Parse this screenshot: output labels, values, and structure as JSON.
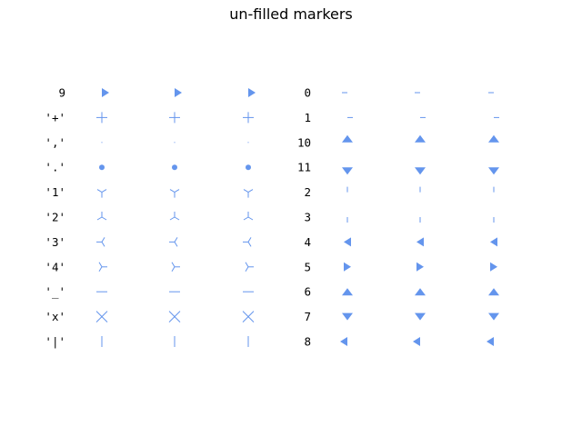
{
  "title": "un-filled markers",
  "marker_color": "#6495ED",
  "left_panel": {
    "rows": [
      {
        "label": "9",
        "marker": "caretright-base"
      },
      {
        "label": "'+'",
        "marker": "plus"
      },
      {
        "label": "','",
        "marker": "pixel"
      },
      {
        "label": "'.'",
        "marker": "point"
      },
      {
        "label": "'1'",
        "marker": "tri-down"
      },
      {
        "label": "'2'",
        "marker": "tri-up"
      },
      {
        "label": "'3'",
        "marker": "tri-left"
      },
      {
        "label": "'4'",
        "marker": "tri-right"
      },
      {
        "label": "'_'",
        "marker": "hline"
      },
      {
        "label": "'x'",
        "marker": "x"
      },
      {
        "label": "'|'",
        "marker": "vline"
      }
    ]
  },
  "right_panel": {
    "rows": [
      {
        "label": "0",
        "marker": "tickleft"
      },
      {
        "label": "1",
        "marker": "tickright"
      },
      {
        "label": "10",
        "marker": "caretup-base"
      },
      {
        "label": "11",
        "marker": "caretdown-base"
      },
      {
        "label": "2",
        "marker": "tickup"
      },
      {
        "label": "3",
        "marker": "tickdown"
      },
      {
        "label": "4",
        "marker": "caretleft"
      },
      {
        "label": "5",
        "marker": "caretright"
      },
      {
        "label": "6",
        "marker": "caretup"
      },
      {
        "label": "7",
        "marker": "caretdown"
      },
      {
        "label": "8",
        "marker": "caretleft-base"
      }
    ]
  }
}
